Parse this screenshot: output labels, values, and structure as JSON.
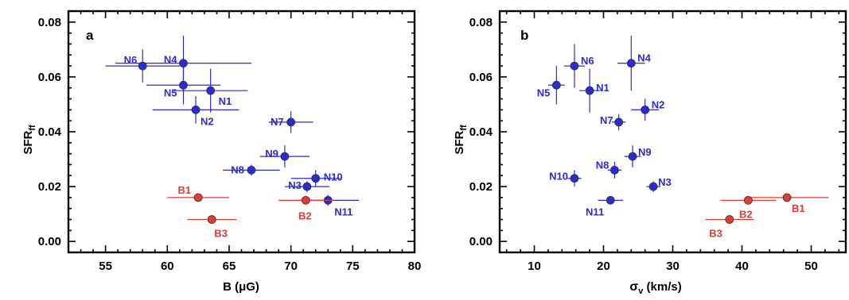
{
  "colors": {
    "blue_series": "#2b2bd6",
    "red_series": "#e03c31",
    "axes": "#000000"
  },
  "chart_data": [
    {
      "type": "scatter",
      "panel_label": "a",
      "xlabel": "B (μG)",
      "ylabel": "SFR",
      "ylabel_sub": "ff",
      "xlim": [
        52,
        80
      ],
      "ylim": [
        -0.004,
        0.084
      ],
      "xticks": [
        "55",
        "60",
        "65",
        "70",
        "75",
        "80"
      ],
      "yticks": [
        "0.00",
        "0.02",
        "0.04",
        "0.06",
        "0.08"
      ],
      "grid": false,
      "series": [
        {
          "color_key": "blue_series",
          "points": [
            {
              "label": "N1",
              "x": 63.5,
              "y": 0.055,
              "xerr": 3.0,
              "yerr": 0.008
            },
            {
              "label": "N2",
              "x": 62.3,
              "y": 0.048,
              "xerr": 3.5,
              "yerr": 0.005
            },
            {
              "label": "N4",
              "x": 61.3,
              "y": 0.065,
              "xerr": 5.5,
              "yerr": 0.01
            },
            {
              "label": "N5",
              "x": 61.3,
              "y": 0.057,
              "xerr": 3.0,
              "yerr": 0.007
            },
            {
              "label": "N6",
              "x": 58.0,
              "y": 0.064,
              "xerr": 3.0,
              "yerr": 0.006
            },
            {
              "label": "N7",
              "x": 70.0,
              "y": 0.0435,
              "xerr": 1.8,
              "yerr": 0.004
            },
            {
              "label": "N8",
              "x": 66.8,
              "y": 0.026,
              "xerr": 2.3,
              "yerr": 0.002
            },
            {
              "label": "N9",
              "x": 69.5,
              "y": 0.031,
              "xerr": 2.0,
              "yerr": 0.004
            },
            {
              "label": "N3",
              "x": 71.3,
              "y": 0.02,
              "xerr": 1.8,
              "yerr": 0.002
            },
            {
              "label": "N10",
              "x": 72.0,
              "y": 0.023,
              "xerr": 2.0,
              "yerr": 0.003
            },
            {
              "label": "N11",
              "x": 73.0,
              "y": 0.015,
              "xerr": 2.5,
              "yerr": 0.002
            }
          ]
        },
        {
          "color_key": "red_series",
          "points": [
            {
              "label": "B1",
              "x": 62.5,
              "y": 0.016,
              "xerr": 2.5,
              "yerr": 0.001
            },
            {
              "label": "B2",
              "x": 71.2,
              "y": 0.015,
              "xerr": 2.2,
              "yerr": 0.001
            },
            {
              "label": "B3",
              "x": 63.6,
              "y": 0.008,
              "xerr": 2.0,
              "yerr": 0.001
            }
          ]
        }
      ]
    },
    {
      "type": "scatter",
      "panel_label": "b",
      "xlabel": "σ",
      "xlabel_sub": "v",
      "xlabel_tail": " (km/s)",
      "ylabel": "SFR",
      "ylabel_sub": "ff",
      "xlim": [
        5,
        55
      ],
      "ylim": [
        -0.004,
        0.084
      ],
      "xticks": [
        "10",
        "20",
        "30",
        "40",
        "50"
      ],
      "yticks": [
        "0.00",
        "0.02",
        "0.04",
        "0.06",
        "0.08"
      ],
      "grid": false,
      "series": [
        {
          "color_key": "blue_series",
          "points": [
            {
              "label": "N4",
              "x": 24.0,
              "y": 0.065,
              "xerr": 2.0,
              "yerr": 0.01
            },
            {
              "label": "N6",
              "x": 15.8,
              "y": 0.064,
              "xerr": 1.5,
              "yerr": 0.008
            },
            {
              "label": "N5",
              "x": 13.2,
              "y": 0.057,
              "xerr": 1.2,
              "yerr": 0.007
            },
            {
              "label": "N1",
              "x": 18.0,
              "y": 0.055,
              "xerr": 1.5,
              "yerr": 0.008
            },
            {
              "label": "N2",
              "x": 26.0,
              "y": 0.048,
              "xerr": 2.0,
              "yerr": 0.004
            },
            {
              "label": "N7",
              "x": 22.2,
              "y": 0.0435,
              "xerr": 1.0,
              "yerr": 0.003
            },
            {
              "label": "N9",
              "x": 24.2,
              "y": 0.031,
              "xerr": 1.2,
              "yerr": 0.004
            },
            {
              "label": "N8",
              "x": 21.6,
              "y": 0.026,
              "xerr": 1.0,
              "yerr": 0.003
            },
            {
              "label": "N10",
              "x": 15.8,
              "y": 0.023,
              "xerr": 1.0,
              "yerr": 0.003
            },
            {
              "label": "N3",
              "x": 27.2,
              "y": 0.02,
              "xerr": 1.0,
              "yerr": 0.002
            },
            {
              "label": "N11",
              "x": 21.0,
              "y": 0.015,
              "xerr": 1.8,
              "yerr": 0.001
            }
          ]
        },
        {
          "color_key": "red_series",
          "points": [
            {
              "label": "B1",
              "x": 46.5,
              "y": 0.016,
              "xerr": 6.0,
              "yerr": 0.001
            },
            {
              "label": "B2",
              "x": 40.9,
              "y": 0.015,
              "xerr": 4.0,
              "yerr": 0.001
            },
            {
              "label": "B3",
              "x": 38.2,
              "y": 0.008,
              "xerr": 3.5,
              "yerr": 0.001
            }
          ]
        }
      ]
    }
  ]
}
